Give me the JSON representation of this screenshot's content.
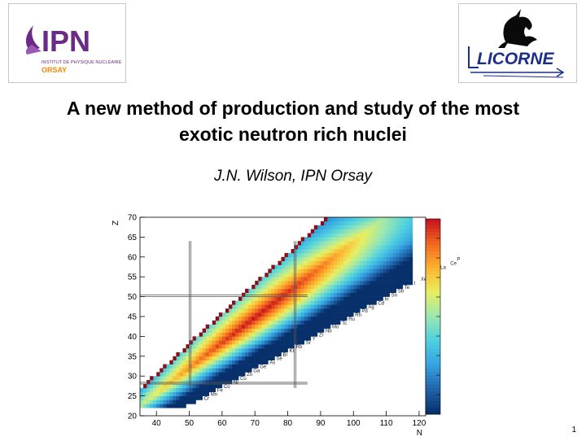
{
  "logos": {
    "ipn": {
      "main": "IPN",
      "line1": "INSTITUT DE PHYSIQUE NUCLÉAIRE",
      "line2": "ORSAY"
    },
    "licorne": {
      "name": "LICORNE"
    }
  },
  "title": {
    "line1": "A new method of production and study of the most",
    "line2": "exotic neutron rich nuclei"
  },
  "author": "J.N. Wilson, IPN Orsay",
  "page_number": "1",
  "colors": {
    "ipn_purple": "#6b2a86",
    "ipn_orange": "#f08a00",
    "licorne_blue": "#1a2f8c",
    "stable_edge": "#8b0f1a"
  },
  "chart_data": {
    "type": "heatmap",
    "xlabel": "N",
    "ylabel": "Z",
    "xlim": [
      35,
      122
    ],
    "ylim": [
      20,
      70
    ],
    "xticks": [
      40,
      50,
      60,
      70,
      80,
      90,
      100,
      110,
      120
    ],
    "yticks": [
      20,
      25,
      30,
      35,
      40,
      45,
      50,
      55,
      60,
      65,
      70
    ],
    "colorbar": [
      "#08306b",
      "#2166ac",
      "#36a3e0",
      "#4fd0e0",
      "#9be8b0",
      "#e8ef60",
      "#fdb530",
      "#f26a1f",
      "#c8141e"
    ],
    "band": {
      "lower_N_per_Z": 2.2,
      "center_N_per_Z": 1.57,
      "upper_N_per_Z": 1.32
    },
    "magic_box": {
      "Z": [
        28,
        50
      ],
      "N": [
        50,
        82
      ]
    },
    "elements": [
      {
        "s": "Cr",
        "z": 24
      },
      {
        "s": "Mn",
        "z": 25
      },
      {
        "s": "Fe",
        "z": 26
      },
      {
        "s": "Co",
        "z": 27
      },
      {
        "s": "Ni",
        "z": 28
      },
      {
        "s": "Cu",
        "z": 29
      },
      {
        "s": "Zn",
        "z": 30
      },
      {
        "s": "Ga",
        "z": 31
      },
      {
        "s": "Ge",
        "z": 32
      },
      {
        "s": "As",
        "z": 33
      },
      {
        "s": "Se",
        "z": 34
      },
      {
        "s": "Br",
        "z": 35
      },
      {
        "s": "Kr",
        "z": 36
      },
      {
        "s": "Rb",
        "z": 37
      },
      {
        "s": "Sr",
        "z": 38
      },
      {
        "s": "Y",
        "z": 39
      },
      {
        "s": "Zr",
        "z": 40
      },
      {
        "s": "Nb",
        "z": 41
      },
      {
        "s": "Mo",
        "z": 42
      },
      {
        "s": "Tc",
        "z": 43
      },
      {
        "s": "Ru",
        "z": 44
      },
      {
        "s": "Rh",
        "z": 45
      },
      {
        "s": "Pd",
        "z": 46
      },
      {
        "s": "Ag",
        "z": 47
      },
      {
        "s": "Cd",
        "z": 48
      },
      {
        "s": "In",
        "z": 49
      },
      {
        "s": "Sn",
        "z": 50
      },
      {
        "s": "Sb",
        "z": 51
      },
      {
        "s": "Te",
        "z": 52
      },
      {
        "s": "I",
        "z": 53
      },
      {
        "s": "Xe",
        "z": 54
      },
      {
        "s": "Cs",
        "z": 55
      },
      {
        "s": "Ba",
        "z": 56
      },
      {
        "s": "La",
        "z": 57
      },
      {
        "s": "Ce",
        "z": 58
      },
      {
        "s": "Pr",
        "z": 59
      },
      {
        "s": "Nd",
        "z": 60
      },
      {
        "s": "Pm",
        "z": 61
      },
      {
        "s": "Sm",
        "z": 62
      },
      {
        "s": "Eu",
        "z": 63
      },
      {
        "s": "Gd",
        "z": 64
      },
      {
        "s": "Tb",
        "z": 65
      }
    ]
  }
}
